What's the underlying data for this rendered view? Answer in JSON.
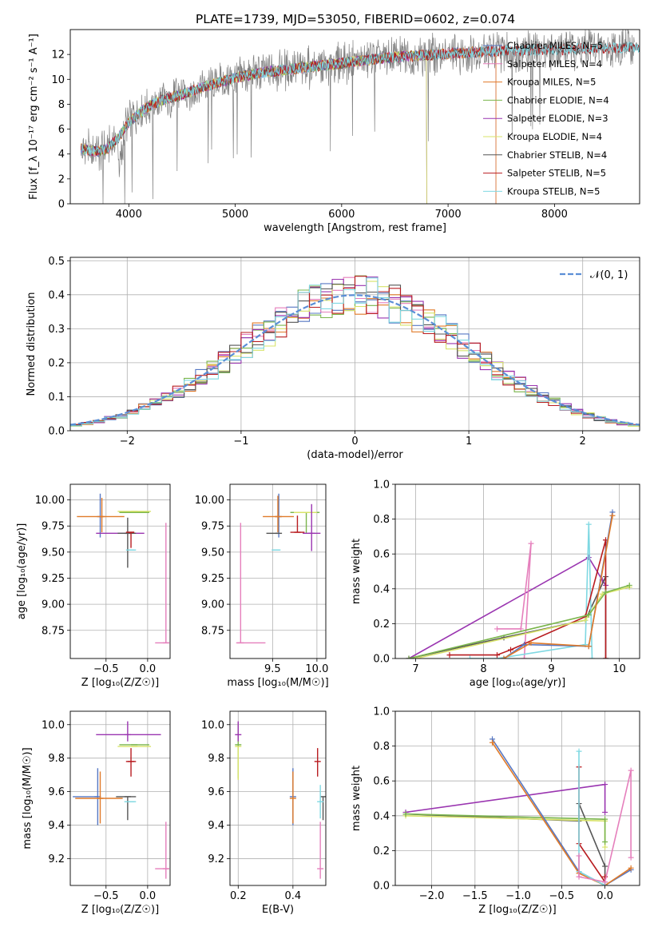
{
  "figure_title": "PLATE=1739, MJD=53050, FIBERID=0602, z=0.074",
  "chart_data": [
    {
      "id": "spectrum",
      "type": "line",
      "title": "PLATE=1739, MJD=53050, FIBERID=0602, z=0.074",
      "xlabel": "wavelength [Angstrom, rest frame]",
      "ylabel": "Flux [f_λ 10⁻¹⁷ erg cm⁻² s⁻¹ A⁻¹]",
      "xlim": [
        3450,
        8800
      ],
      "ylim": [
        0,
        14
      ],
      "xticks": [
        4000,
        5000,
        6000,
        7000,
        8000
      ],
      "yticks": [
        0,
        2,
        4,
        6,
        8,
        10,
        12
      ],
      "legend_position": "top-right",
      "grid": false,
      "data_continuum": {
        "x": [
          3550,
          3700,
          3800,
          3900,
          4000,
          4100,
          4200,
          4300,
          4500,
          4700,
          4900,
          5100,
          5300,
          5500,
          5700,
          5900,
          6100,
          6300,
          6500,
          6700,
          6900,
          7100,
          7300,
          7500,
          7700,
          7900,
          8100,
          8300,
          8500,
          8700
        ],
        "y": [
          4.4,
          4.2,
          4.4,
          5.3,
          6.5,
          7.3,
          7.9,
          8.3,
          8.8,
          9.4,
          9.9,
          10.3,
          10.6,
          10.8,
          11.0,
          11.2,
          11.4,
          11.6,
          11.8,
          11.9,
          12.0,
          12.1,
          12.2,
          12.3,
          12.3,
          12.4,
          12.4,
          12.5,
          12.5,
          12.6
        ]
      },
      "series": [
        {
          "name": "Chabrier MILES, N_SSP=5",
          "color": "#5778c4",
          "xmax": 7450
        },
        {
          "name": "Salpeter MILES, N_SSP=4",
          "color": "#e57fbc",
          "xmax": 7450
        },
        {
          "name": "Kroupa MILES, N_SSP=5",
          "color": "#e07a28",
          "xmax": 7450
        },
        {
          "name": "Chabrier ELODIE, N_SSP=4",
          "color": "#7ab54c",
          "xmax": 6800
        },
        {
          "name": "Salpeter ELODIE, N_SSP=3",
          "color": "#9a35b0",
          "xmax": 6800
        },
        {
          "name": "Kroupa ELODIE, N_SSP=4",
          "color": "#d8e36a",
          "xmax": 6800
        },
        {
          "name": "Chabrier STELIB, N_SSP=4",
          "color": "#555555",
          "xmax": 8800
        },
        {
          "name": "Salpeter STELIB, N_SSP=5",
          "color": "#b81c20",
          "xmax": 8800
        },
        {
          "name": "Kroupa STELIB, N_SSP=5",
          "color": "#7fd8e2",
          "xmax": 8800
        }
      ]
    },
    {
      "id": "residuals",
      "type": "histogram",
      "xlabel": "(data-model)/error",
      "ylabel": "Normed distribution",
      "xlim": [
        -2.5,
        2.5
      ],
      "ylim": [
        0,
        0.51
      ],
      "xticks": [
        -2,
        -1,
        0,
        1,
        2
      ],
      "yticks": [
        0.0,
        0.1,
        0.2,
        0.3,
        0.4,
        0.5
      ],
      "grid": true,
      "legend": [
        {
          "label": "𝒩(0, 1)",
          "color": "#5b8ed6",
          "style": "dashed"
        }
      ],
      "legend_position": "top-right",
      "bin_width": 0.1,
      "series_colors": [
        "#5778c4",
        "#e57fbc",
        "#e07a28",
        "#7ab54c",
        "#9a35b0",
        "#d8e36a",
        "#555555",
        "#b81c20",
        "#7fd8e2"
      ]
    },
    {
      "id": "age-vs-Z",
      "type": "errorbar",
      "xlabel": "Z [log₁₀(Z/Z☉)]",
      "ylabel": "age  [log₁₀(age/yr)]",
      "xlim": [
        -0.93,
        0.27
      ],
      "ylim": [
        8.48,
        10.15
      ],
      "xticks": [
        -0.5,
        0.0
      ],
      "yticks": [
        8.75,
        9.0,
        9.25,
        9.5,
        9.75,
        10.0
      ],
      "grid": true,
      "points": [
        {
          "color": "#5778c4",
          "x": -0.57,
          "y": 9.84,
          "xerr": [
            0.0,
            0.0
          ],
          "yerr": [
            0.2,
            0.22
          ]
        },
        {
          "color": "#e07a28",
          "x": -0.55,
          "y": 9.84,
          "xerr": [
            0.3,
            0.27
          ],
          "yerr": [
            0.15,
            0.18
          ]
        },
        {
          "color": "#e57fbc",
          "x": 0.22,
          "y": 8.63,
          "xerr": [
            0.13,
            0.04
          ],
          "yerr": [
            0.0,
            1.15
          ]
        },
        {
          "color": "#7ab54c",
          "x": -0.16,
          "y": 9.88,
          "xerr": [
            0.18,
            0.18
          ],
          "yerr": [
            0.0,
            0.0
          ]
        },
        {
          "color": "#d8e36a",
          "x": -0.16,
          "y": 9.89,
          "xerr": [
            0.2,
            0.2
          ],
          "yerr": [
            0.0,
            0.0
          ]
        },
        {
          "color": "#9a35b0",
          "x": -0.24,
          "y": 9.68,
          "xerr": [
            0.38,
            0.2
          ],
          "yerr": [
            0.0,
            0.0
          ]
        },
        {
          "color": "#555555",
          "x": -0.24,
          "y": 9.68,
          "xerr": [
            0.12,
            0.1
          ],
          "yerr": [
            0.33,
            0.15
          ]
        },
        {
          "color": "#b81c20",
          "x": -0.2,
          "y": 9.69,
          "xerr": [
            0.06,
            0.04
          ],
          "yerr": [
            0.15,
            0.0
          ]
        },
        {
          "color": "#7fd8e2",
          "x": -0.2,
          "y": 9.52,
          "xerr": [
            0.06,
            0.06
          ],
          "yerr": [
            0.0,
            0.0
          ]
        }
      ]
    },
    {
      "id": "age-vs-mass",
      "type": "errorbar",
      "xlabel": "mass [log₁₀(M/M☉)]",
      "ylabel": "",
      "xlim": [
        9.02,
        10.1
      ],
      "ylim": [
        8.48,
        10.15
      ],
      "xticks": [
        9.5,
        10.0
      ],
      "yticks": [
        8.75,
        9.0,
        9.25,
        9.5,
        9.75,
        10.0
      ],
      "grid": true,
      "points": [
        {
          "color": "#5778c4",
          "x": 9.57,
          "y": 9.84,
          "xerr": [
            0.0,
            0.0
          ],
          "yerr": [
            0.2,
            0.22
          ]
        },
        {
          "color": "#e07a28",
          "x": 9.56,
          "y": 9.84,
          "xerr": [
            0.17,
            0.18
          ],
          "yerr": [
            0.15,
            0.2
          ]
        },
        {
          "color": "#e57fbc",
          "x": 9.14,
          "y": 8.63,
          "xerr": [
            0.05,
            0.28
          ],
          "yerr": [
            0.0,
            1.15
          ]
        },
        {
          "color": "#7ab54c",
          "x": 9.88,
          "y": 9.88,
          "xerr": [
            0.18,
            0.15
          ],
          "yerr": [
            0.2,
            0.0
          ]
        },
        {
          "color": "#d8e36a",
          "x": 9.87,
          "y": 9.88,
          "xerr": [
            0.13,
            0.13
          ],
          "yerr": [
            0.0,
            0.0
          ]
        },
        {
          "color": "#9a35b0",
          "x": 9.94,
          "y": 9.68,
          "xerr": [
            0.1,
            0.1
          ],
          "yerr": [
            0.17,
            0.28
          ]
        },
        {
          "color": "#555555",
          "x": 9.57,
          "y": 9.68,
          "xerr": [
            0.14,
            0.0
          ],
          "yerr": [
            0.0,
            0.0
          ]
        },
        {
          "color": "#b81c20",
          "x": 9.78,
          "y": 9.69,
          "xerr": [
            0.08,
            0.08
          ],
          "yerr": [
            0.0,
            0.16
          ]
        },
        {
          "color": "#7fd8e2",
          "x": 9.54,
          "y": 9.52,
          "xerr": [
            0.05,
            0.05
          ],
          "yerr": [
            0.0,
            0.0
          ]
        }
      ]
    },
    {
      "id": "weight-vs-age",
      "type": "line",
      "xlabel": "age  [log₁₀(age/yr)]",
      "ylabel": "mass weight",
      "xlim": [
        6.7,
        10.3
      ],
      "ylim": [
        0,
        1.0
      ],
      "xticks": [
        7,
        8,
        9,
        10
      ],
      "yticks": [
        0.0,
        0.2,
        0.4,
        0.6,
        0.8,
        1.0
      ],
      "grid": true,
      "series": [
        {
          "color": "#9a35b0",
          "x": [
            6.9,
            9.55,
            9.75,
            9.8
          ],
          "y": [
            0.0,
            0.58,
            0.45,
            0.42
          ]
        },
        {
          "color": "#555555",
          "x": [
            6.9,
            8.3,
            9.5,
            9.8,
            9.8
          ],
          "y": [
            0.0,
            0.12,
            0.22,
            0.47,
            0.0
          ]
        },
        {
          "color": "#e57fbc",
          "x": [
            8.2,
            8.55,
            8.7,
            8.6
          ],
          "y": [
            0.17,
            0.17,
            0.66,
            0.0
          ]
        },
        {
          "color": "#7fd8e2",
          "x": [
            7.8,
            8.2,
            9.5,
            9.55,
            9.6
          ],
          "y": [
            0.0,
            0.0,
            0.08,
            0.77,
            0.0
          ]
        },
        {
          "color": "#b81c20",
          "x": [
            7.5,
            8.2,
            8.4,
            9.5,
            9.8,
            9.8
          ],
          "y": [
            0.02,
            0.02,
            0.05,
            0.24,
            0.68,
            0.0
          ]
        },
        {
          "color": "#d8e36a",
          "x": [
            7.0,
            9.5,
            9.75,
            10.15
          ],
          "y": [
            0.0,
            0.22,
            0.37,
            0.41
          ]
        },
        {
          "color": "#7ab54c",
          "x": [
            6.9,
            9.55,
            9.8,
            10.15
          ],
          "y": [
            0.0,
            0.25,
            0.38,
            0.42
          ]
        },
        {
          "color": "#5778c4",
          "x": [
            8.3,
            8.6,
            9.55,
            9.9
          ],
          "y": [
            0.0,
            0.08,
            0.07,
            0.84
          ]
        },
        {
          "color": "#e07a28",
          "x": [
            8.3,
            8.7,
            9.55,
            9.9
          ],
          "y": [
            0.0,
            0.09,
            0.07,
            0.82
          ]
        }
      ]
    },
    {
      "id": "mass-vs-Z",
      "type": "errorbar",
      "xlabel": "Z [log₁₀(Z/Z☉)]",
      "ylabel": "mass [log₁₀(M/M☉)]",
      "xlim": [
        -0.93,
        0.27
      ],
      "ylim": [
        9.04,
        10.08
      ],
      "xticks": [
        -0.5,
        0.0
      ],
      "yticks": [
        9.2,
        9.4,
        9.6,
        9.8,
        10.0
      ],
      "grid": true,
      "points": [
        {
          "color": "#5778c4",
          "x": -0.6,
          "y": 9.57,
          "xerr": [
            0.3,
            0.0
          ],
          "yerr": [
            0.17,
            0.17
          ]
        },
        {
          "color": "#e07a28",
          "x": -0.57,
          "y": 9.56,
          "xerr": [
            0.3,
            0.27
          ],
          "yerr": [
            0.15,
            0.16
          ]
        },
        {
          "color": "#e57fbc",
          "x": 0.22,
          "y": 9.14,
          "xerr": [
            0.13,
            0.04
          ],
          "yerr": [
            0.06,
            0.28
          ]
        },
        {
          "color": "#7ab54c",
          "x": -0.16,
          "y": 9.88,
          "xerr": [
            0.18,
            0.18
          ],
          "yerr": [
            0.0,
            0.0
          ]
        },
        {
          "color": "#d8e36a",
          "x": -0.16,
          "y": 9.87,
          "xerr": [
            0.2,
            0.2
          ],
          "yerr": [
            0.0,
            0.0
          ]
        },
        {
          "color": "#9a35b0",
          "x": -0.24,
          "y": 9.94,
          "xerr": [
            0.38,
            0.4
          ],
          "yerr": [
            0.04,
            0.08
          ]
        },
        {
          "color": "#555555",
          "x": -0.24,
          "y": 9.57,
          "xerr": [
            0.14,
            0.1
          ],
          "yerr": [
            0.14,
            0.0
          ]
        },
        {
          "color": "#b81c20",
          "x": -0.2,
          "y": 9.78,
          "xerr": [
            0.06,
            0.06
          ],
          "yerr": [
            0.09,
            0.08
          ]
        },
        {
          "color": "#7fd8e2",
          "x": -0.2,
          "y": 9.54,
          "xerr": [
            0.08,
            0.06
          ],
          "yerr": [
            0.0,
            0.0
          ]
        }
      ]
    },
    {
      "id": "mass-vs-ebv",
      "type": "errorbar",
      "xlabel": "E(B-V)",
      "ylabel": "",
      "xlim": [
        0.17,
        0.52
      ],
      "ylim": [
        9.04,
        10.08
      ],
      "xticks": [
        0.2,
        0.4
      ],
      "yticks": [
        9.2,
        9.4,
        9.6,
        9.8,
        10.0
      ],
      "grid": true,
      "points": [
        {
          "color": "#5778c4",
          "x": 0.4,
          "y": 9.57,
          "xerr": [
            0.0,
            0.0
          ],
          "yerr": [
            0.17,
            0.17
          ]
        },
        {
          "color": "#e07a28",
          "x": 0.4,
          "y": 9.56,
          "xerr": [
            0.0,
            0.0
          ],
          "yerr": [
            0.15,
            0.16
          ]
        },
        {
          "color": "#e57fbc",
          "x": 0.5,
          "y": 9.14,
          "xerr": [
            0.0,
            0.0
          ],
          "yerr": [
            0.06,
            0.28
          ]
        },
        {
          "color": "#7ab54c",
          "x": 0.2,
          "y": 9.88,
          "xerr": [
            0.0,
            0.0
          ],
          "yerr": [
            0.2,
            0.13
          ]
        },
        {
          "color": "#d8e36a",
          "x": 0.2,
          "y": 9.87,
          "xerr": [
            0.0,
            0.0
          ],
          "yerr": [
            0.2,
            0.0
          ]
        },
        {
          "color": "#9a35b0",
          "x": 0.2,
          "y": 9.94,
          "xerr": [
            0.0,
            0.0
          ],
          "yerr": [
            0.04,
            0.08
          ]
        },
        {
          "color": "#555555",
          "x": 0.51,
          "y": 9.57,
          "xerr": [
            0.0,
            0.0
          ],
          "yerr": [
            0.14,
            0.0
          ]
        },
        {
          "color": "#b81c20",
          "x": 0.49,
          "y": 9.78,
          "xerr": [
            0.0,
            0.0
          ],
          "yerr": [
            0.09,
            0.08
          ]
        },
        {
          "color": "#7fd8e2",
          "x": 0.5,
          "y": 9.54,
          "xerr": [
            0.0,
            0.0
          ],
          "yerr": [
            0.1,
            0.1
          ]
        }
      ]
    },
    {
      "id": "weight-vs-Z",
      "type": "line",
      "xlabel": "Z [log₁₀(Z/Z☉)]",
      "ylabel": "mass weight",
      "xlim": [
        -2.42,
        0.4
      ],
      "ylim": [
        0,
        1.0
      ],
      "xticks": [
        -2.0,
        -1.5,
        -1.0,
        -0.5,
        0.0
      ],
      "yticks": [
        0.0,
        0.2,
        0.4,
        0.6,
        0.8,
        1.0
      ],
      "grid": true,
      "series": [
        {
          "color": "#9a35b0",
          "x": [
            -2.3,
            0.0,
            0.0
          ],
          "y": [
            0.42,
            0.58,
            0.42
          ]
        },
        {
          "color": "#555555",
          "x": [
            -2.3,
            -0.3,
            -0.3,
            0.0,
            0.0
          ],
          "y": [
            0.41,
            0.37,
            0.47,
            0.11,
            0.0
          ]
        },
        {
          "color": "#d8e36a",
          "x": [
            -2.3,
            0.0,
            0.0
          ],
          "y": [
            0.4,
            0.37,
            0.22
          ]
        },
        {
          "color": "#7ab54c",
          "x": [
            -2.3,
            0.0,
            0.0
          ],
          "y": [
            0.41,
            0.38,
            0.25
          ]
        },
        {
          "color": "#5778c4",
          "x": [
            -1.3,
            -0.3,
            0.0,
            0.3
          ],
          "y": [
            0.84,
            0.08,
            0.0,
            0.09
          ]
        },
        {
          "color": "#e07a28",
          "x": [
            -1.3,
            -0.3,
            0.0,
            0.3
          ],
          "y": [
            0.82,
            0.07,
            0.0,
            0.1
          ]
        },
        {
          "color": "#b81c20",
          "x": [
            -0.3,
            -0.3,
            0.0,
            0.0
          ],
          "y": [
            0.68,
            0.24,
            0.02,
            0.05
          ]
        },
        {
          "color": "#7fd8e2",
          "x": [
            -0.3,
            -0.3,
            0.0,
            0.0
          ],
          "y": [
            0.77,
            0.08,
            0.0,
            0.02
          ]
        },
        {
          "color": "#e57fbc",
          "x": [
            -0.3,
            -0.3,
            0.0,
            0.3,
            0.3
          ],
          "y": [
            0.17,
            0.05,
            0.02,
            0.66,
            0.16
          ]
        }
      ]
    }
  ]
}
